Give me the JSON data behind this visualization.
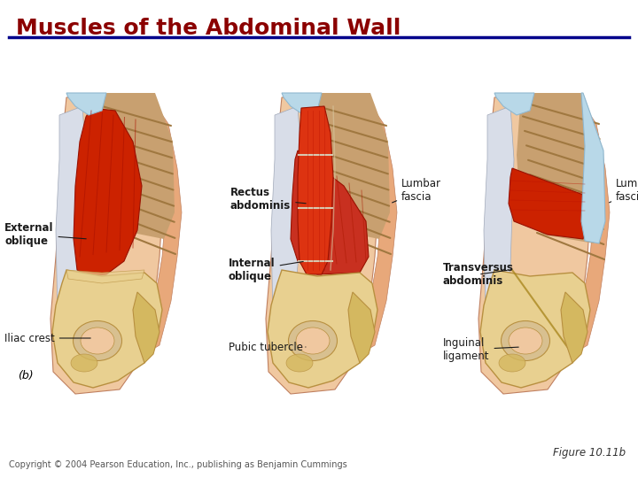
{
  "title": "Muscles of the Abdominal Wall",
  "title_color": "#8B0000",
  "title_fontsize": 18,
  "bg_color": "#FFFFFF",
  "title_bar_color": "#00008B",
  "figure_label": "Figure 10.11b",
  "copyright_text": "Copyright © 2004 Pearson Education, Inc., publishing as Benjamin Cummings",
  "panel_b_label": "(b)",
  "skin_light": "#F0C8A0",
  "skin_mid": "#E8A87A",
  "skin_dark": "#D48855",
  "muscle_red": "#CC2200",
  "muscle_red2": "#DD3311",
  "muscle_pink": "#E05540",
  "bone_light": "#E8D090",
  "bone_mid": "#D4B860",
  "bone_dark": "#B89040",
  "fascia_blue": "#B8D8E8",
  "fascia_blue2": "#90B8D0",
  "rib_color": "#C8A070",
  "rib_line": "#A07840",
  "white_tendon": "#F0EEE8",
  "line_color": "#1A1A1A",
  "label_color": "#1A1A1A"
}
